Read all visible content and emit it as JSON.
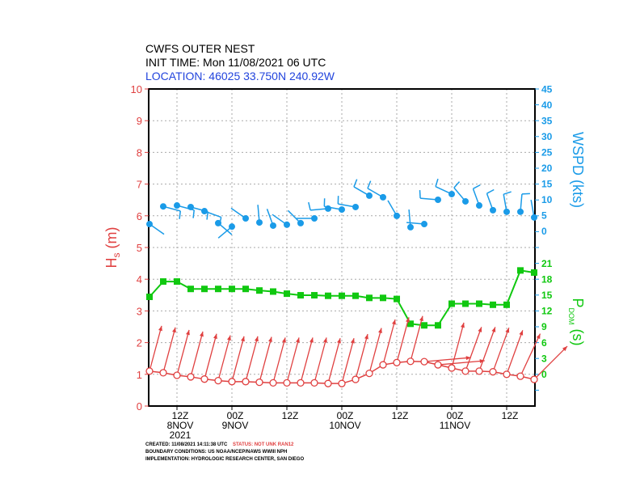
{
  "header": {
    "title": "CWFS OUTER NEST",
    "init_time": "INIT TIME: Mon 11/08/2021 06 UTC",
    "location": "LOCATION: 46025 33.750N 240.92W"
  },
  "footer": {
    "created": "CREATED: 11/08/2021 14:11:38 UTC",
    "status": "STATUS: NOT UNK RAN12",
    "boundary": "BOUNDARY CONDITIONS: US NOAA/NCEP/NAWS WWIII NPH",
    "implementation": "IMPLEMENTATION: HYDROLOGIC RESEARCH CENTER, SAN DIEGO"
  },
  "colors": {
    "hs": "#e04040",
    "wspd": "#1a9be8",
    "pdom": "#10c810",
    "location": "#2244dd"
  },
  "chart_data": {
    "type": "line",
    "x_start": "2021-11-08 06Z",
    "x_step_hours": 3,
    "x_ticks": [
      {
        "hour": "2021-11-08 12Z",
        "label": [
          "12Z",
          "8NOV",
          "2021"
        ]
      },
      {
        "hour": "2021-11-09 00Z",
        "label": [
          "00Z",
          "9NOV"
        ]
      },
      {
        "hour": "2021-11-09 12Z",
        "label": [
          "12Z"
        ]
      },
      {
        "hour": "2021-11-10 00Z",
        "label": [
          "00Z",
          "10NOV"
        ]
      },
      {
        "hour": "2021-11-10 12Z",
        "label": [
          "12Z"
        ]
      },
      {
        "hour": "2021-11-11 00Z",
        "label": [
          "00Z",
          "11NOV"
        ]
      },
      {
        "hour": "2021-11-11 12Z",
        "label": [
          "12Z"
        ]
      }
    ],
    "hs": {
      "ylabel_main": "H",
      "ylabel_sub": "s",
      "ylabel_unit": "(m)",
      "ylim": [
        0,
        10
      ],
      "ticks": [
        0,
        1,
        2,
        3,
        4,
        5,
        6,
        7,
        8,
        9,
        10
      ],
      "values": [
        1.1,
        1.05,
        0.97,
        0.92,
        0.85,
        0.8,
        0.77,
        0.77,
        0.75,
        0.73,
        0.73,
        0.73,
        0.73,
        0.71,
        0.71,
        0.84,
        1.03,
        1.3,
        1.37,
        1.41,
        1.4,
        1.3,
        1.2,
        1.1,
        1.1,
        1.08,
        1.0,
        0.94,
        0.84
      ],
      "direction_arrow_deg": [
        15,
        15,
        15,
        15,
        15,
        15,
        15,
        15,
        15,
        15,
        15,
        15,
        15,
        15,
        15,
        15,
        15,
        15,
        15,
        15,
        85,
        85,
        15,
        20,
        20,
        20,
        20,
        25,
        45
      ]
    },
    "pdom": {
      "ylabel_main": "P",
      "ylabel_sub": "DOM",
      "ylabel_unit": "(s)",
      "ticks": [
        0,
        3,
        6,
        9,
        12,
        15,
        18,
        21
      ],
      "values": [
        14.7,
        17.6,
        17.6,
        16.2,
        16.2,
        16.2,
        16.2,
        16.2,
        15.9,
        15.7,
        15.3,
        15.0,
        15.0,
        14.9,
        14.9,
        14.9,
        14.5,
        14.5,
        14.3,
        9.6,
        9.3,
        9.3,
        13.4,
        13.4,
        13.4,
        13.2,
        13.2,
        19.7,
        19.3
      ]
    },
    "wspd": {
      "ylabel": "WSPD (kts)",
      "ticks": [
        0,
        5,
        10,
        15,
        20,
        25,
        30,
        35,
        40,
        45
      ],
      "values": [
        2.3,
        7.9,
        8.2,
        7.7,
        6.4,
        2.6,
        1.5,
        4.1,
        2.8,
        1.8,
        2.1,
        2.6,
        4.1,
        7.2,
        6.9,
        7.7,
        11.3,
        10.8,
        4.9,
        1.3,
        2.3,
        10.0,
        11.8,
        9.5,
        8.2,
        6.7,
        6.2,
        6.2,
        4.4
      ],
      "direction_from_deg": [
        125,
        105,
        105,
        105,
        110,
        130,
        230,
        305,
        355,
        340,
        305,
        315,
        270,
        265,
        280,
        280,
        300,
        300,
        330,
        355,
        275,
        275,
        295,
        320,
        340,
        340,
        350,
        5,
        350
      ]
    },
    "grid": true
  }
}
